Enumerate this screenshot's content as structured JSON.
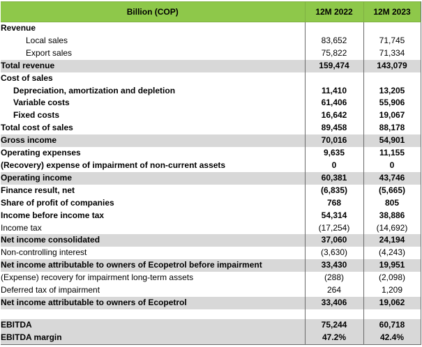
{
  "table": {
    "header": {
      "label": "Billion (COP)",
      "col1": "12M 2022",
      "col2": "12M 2023"
    },
    "rows": [
      {
        "label": "Revenue",
        "v1": "",
        "v2": ""
      },
      {
        "label": "Local sales",
        "v1": "83,652",
        "v2": "71,745"
      },
      {
        "label": "Export sales",
        "v1": "75,822",
        "v2": "71,334"
      },
      {
        "label": "Total revenue",
        "v1": "159,474",
        "v2": "143,079"
      },
      {
        "label": "Cost of sales",
        "v1": "",
        "v2": ""
      },
      {
        "label": "Depreciation, amortization and depletion",
        "v1": "11,410",
        "v2": "13,205"
      },
      {
        "label": "Variable costs",
        "v1": "61,406",
        "v2": "55,906"
      },
      {
        "label": "Fixed costs",
        "v1": "16,642",
        "v2": "19,067"
      },
      {
        "label": "Total cost of sales",
        "v1": "89,458",
        "v2": "88,178"
      },
      {
        "label": "Gross income",
        "v1": "70,016",
        "v2": "54,901"
      },
      {
        "label": "Operating expenses",
        "v1": "9,635",
        "v2": "11,155"
      },
      {
        "label": "(Recovery) expense of impairment of non-current assets",
        "v1": "0",
        "v2": "0"
      },
      {
        "label": "Operating income",
        "v1": "60,381",
        "v2": "43,746"
      },
      {
        "label": "Finance result, net",
        "v1": "(6,835)",
        "v2": "(5,665)"
      },
      {
        "label": "Share of profit of companies",
        "v1": "768",
        "v2": "805"
      },
      {
        "label": "Income before income tax",
        "v1": "54,314",
        "v2": "38,886"
      },
      {
        "label": "Income tax",
        "v1": "(17,254)",
        "v2": "(14,692)"
      },
      {
        "label": "Net income consolidated",
        "v1": "37,060",
        "v2": "24,194"
      },
      {
        "label": "Non-controlling interest",
        "v1": "(3,630)",
        "v2": "(4,243)"
      },
      {
        "label": "Net income attributable to owners of Ecopetrol before impairment",
        "v1": "33,430",
        "v2": "19,951"
      },
      {
        "label": "(Expense) recovery for impairment long-term assets",
        "v1": "(288)",
        "v2": "(2,098)"
      },
      {
        "label": "Deferred tax of impairment",
        "v1": "264",
        "v2": "1,209"
      },
      {
        "label": "Net income attributable to owners of Ecopetrol",
        "v1": "33,406",
        "v2": "19,062"
      },
      {
        "label": "EBITDA",
        "v1": "75,244",
        "v2": "60,718"
      },
      {
        "label": "EBITDA margin",
        "v1": "47.2%",
        "v2": "42.4%"
      }
    ]
  }
}
